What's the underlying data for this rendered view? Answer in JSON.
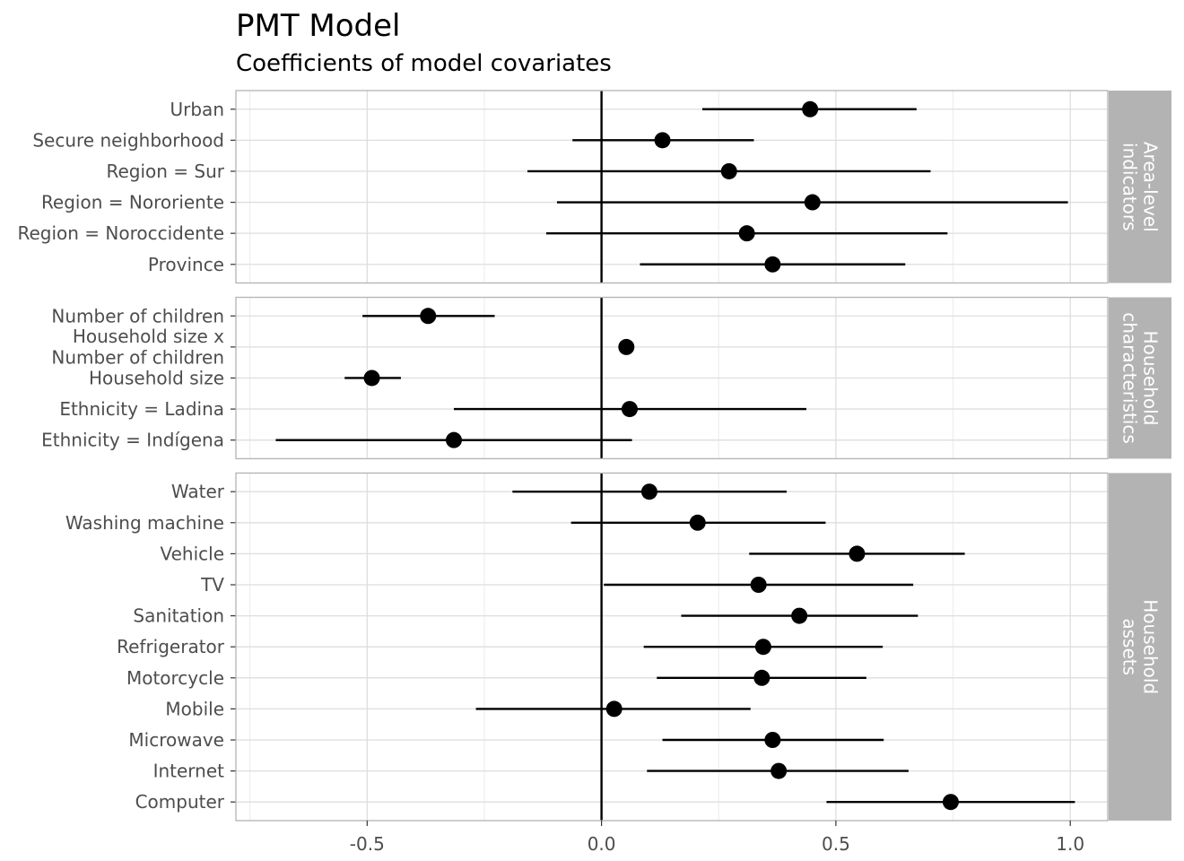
{
  "chart_data": {
    "type": "scatter",
    "title": "PMT Model",
    "subtitle": "Coefficients of model covariates",
    "xlim": [
      -0.78,
      1.08
    ],
    "x_ticks": [
      -0.5,
      0.0,
      0.5,
      1.0
    ],
    "x_tick_labels": [
      "-0.5",
      "0.0",
      "0.5",
      "1.0"
    ],
    "reference_line": 0,
    "grid": true,
    "panels": [
      {
        "strip": [
          "Area-level",
          "indicators"
        ],
        "rows": [
          {
            "label": [
              "Urban"
            ],
            "estimate": 0.445,
            "low": 0.215,
            "high": 0.672
          },
          {
            "label": [
              "Secure neighborhood"
            ],
            "estimate": 0.13,
            "low": -0.062,
            "high": 0.325
          },
          {
            "label": [
              "Region = Sur"
            ],
            "estimate": 0.272,
            "low": -0.158,
            "high": 0.702
          },
          {
            "label": [
              "Region = Nororiente"
            ],
            "estimate": 0.45,
            "low": -0.095,
            "high": 0.995
          },
          {
            "label": [
              "Region = Noroccidente"
            ],
            "estimate": 0.31,
            "low": -0.118,
            "high": 0.738
          },
          {
            "label": [
              "Province"
            ],
            "estimate": 0.365,
            "low": 0.082,
            "high": 0.648
          }
        ]
      },
      {
        "strip": [
          "Household",
          "characteristics"
        ],
        "rows": [
          {
            "label": [
              "Number of children"
            ],
            "estimate": -0.37,
            "low": -0.51,
            "high": -0.228
          },
          {
            "label": [
              "Household size x",
              "Number of children"
            ],
            "estimate": 0.053,
            "low": null,
            "high": null
          },
          {
            "label": [
              "Household size"
            ],
            "estimate": -0.49,
            "low": -0.548,
            "high": -0.428
          },
          {
            "label": [
              "Ethnicity = Ladina"
            ],
            "estimate": 0.06,
            "low": -0.315,
            "high": 0.437
          },
          {
            "label": [
              "Ethnicity = Indígena"
            ],
            "estimate": -0.315,
            "low": -0.695,
            "high": 0.065
          }
        ]
      },
      {
        "strip": [
          "Household",
          "assets"
        ],
        "rows": [
          {
            "label": [
              "Water"
            ],
            "estimate": 0.102,
            "low": -0.19,
            "high": 0.395
          },
          {
            "label": [
              "Washing machine"
            ],
            "estimate": 0.205,
            "low": -0.065,
            "high": 0.478
          },
          {
            "label": [
              "Vehicle"
            ],
            "estimate": 0.545,
            "low": 0.315,
            "high": 0.775
          },
          {
            "label": [
              "TV"
            ],
            "estimate": 0.335,
            "low": 0.005,
            "high": 0.665
          },
          {
            "label": [
              "Sanitation"
            ],
            "estimate": 0.422,
            "low": 0.17,
            "high": 0.675
          },
          {
            "label": [
              "Refrigerator"
            ],
            "estimate": 0.345,
            "low": 0.09,
            "high": 0.6
          },
          {
            "label": [
              "Motorcycle"
            ],
            "estimate": 0.342,
            "low": 0.118,
            "high": 0.565
          },
          {
            "label": [
              "Mobile"
            ],
            "estimate": 0.027,
            "low": -0.268,
            "high": 0.318
          },
          {
            "label": [
              "Microwave"
            ],
            "estimate": 0.365,
            "low": 0.13,
            "high": 0.602
          },
          {
            "label": [
              "Internet"
            ],
            "estimate": 0.378,
            "low": 0.097,
            "high": 0.655
          },
          {
            "label": [
              "Computer"
            ],
            "estimate": 0.745,
            "low": 0.48,
            "high": 1.01
          }
        ]
      }
    ]
  }
}
